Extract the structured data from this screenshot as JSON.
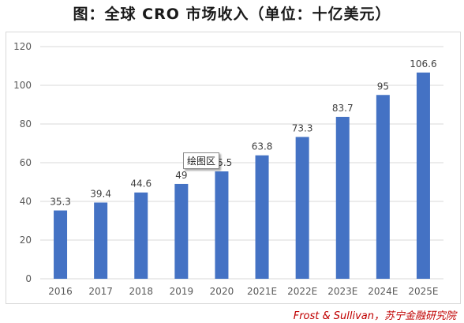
{
  "title": "图：全球 CRO 市场收入（单位：十亿美元）",
  "source": "Frost & Sullivan，苏宁金融研究院",
  "tooltip": "绘图区",
  "chart_data": {
    "type": "bar",
    "categories": [
      "2016",
      "2017",
      "2018",
      "2019",
      "2020",
      "2021E",
      "2022E",
      "2023E",
      "2024E",
      "2025E"
    ],
    "values": [
      35.3,
      39.4,
      44.6,
      49,
      55.5,
      63.8,
      73.3,
      83.7,
      95,
      106.6
    ],
    "data_labels": [
      "35.3",
      "39.4",
      "44.6",
      "49",
      "55.5",
      "63.8",
      "73.3",
      "83.7",
      "95",
      "106.6"
    ],
    "ylim": [
      0,
      120
    ],
    "yticks": [
      0,
      20,
      40,
      60,
      80,
      100,
      120
    ],
    "grid": true,
    "bar_color": "#4472c4"
  }
}
